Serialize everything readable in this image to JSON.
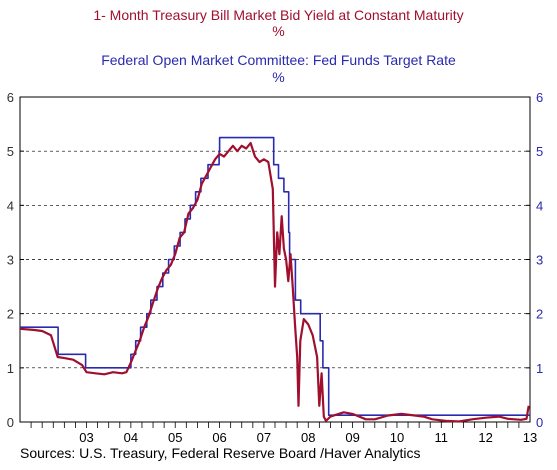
{
  "chart_data": {
    "type": "line",
    "titles": [
      {
        "text": "1- Month Treasury Bill Market Bid Yield at Constant Maturity",
        "color": "#a0102e"
      },
      {
        "text": "%",
        "color": "#a0102e"
      },
      {
        "text": "Federal Open Market Committee: Fed Funds Target Rate",
        "color": "#2a2ab0"
      },
      {
        "text": "%",
        "color": "#2a2ab0"
      }
    ],
    "x_range": [
      2002.0,
      2013.5
    ],
    "x_tick_labels": [
      {
        "label": "03",
        "x": 2003.5
      },
      {
        "label": "04",
        "x": 2004.5
      },
      {
        "label": "05",
        "x": 2005.5
      },
      {
        "label": "06",
        "x": 2006.5
      },
      {
        "label": "07",
        "x": 2007.5
      },
      {
        "label": "08",
        "x": 2008.5
      },
      {
        "label": "09",
        "x": 2009.5
      },
      {
        "label": "10",
        "x": 2010.5
      },
      {
        "label": "11",
        "x": 2011.5
      },
      {
        "label": "12",
        "x": 2012.5
      },
      {
        "label": "13",
        "x": 2013.5
      }
    ],
    "ylim": [
      0,
      6
    ],
    "y_ticks": [
      0,
      1,
      2,
      3,
      4,
      5,
      6
    ],
    "grid": "horizontal-dashed",
    "series": [
      {
        "name": "Federal Open Market Committee: Fed Funds Target Rate",
        "color": "#2a2ab0",
        "step": true,
        "points": [
          [
            2002.0,
            1.75
          ],
          [
            2002.86,
            1.25
          ],
          [
            2003.48,
            1.0
          ],
          [
            2004.5,
            1.25
          ],
          [
            2004.61,
            1.5
          ],
          [
            2004.72,
            1.75
          ],
          [
            2004.86,
            2.0
          ],
          [
            2004.95,
            2.25
          ],
          [
            2005.09,
            2.5
          ],
          [
            2005.22,
            2.75
          ],
          [
            2005.35,
            3.0
          ],
          [
            2005.48,
            3.25
          ],
          [
            2005.61,
            3.5
          ],
          [
            2005.72,
            3.75
          ],
          [
            2005.84,
            4.0
          ],
          [
            2005.96,
            4.25
          ],
          [
            2006.08,
            4.5
          ],
          [
            2006.24,
            4.75
          ],
          [
            2006.49,
            5.0
          ],
          [
            2006.5,
            5.25
          ],
          [
            2007.72,
            4.75
          ],
          [
            2007.83,
            4.5
          ],
          [
            2007.95,
            4.25
          ],
          [
            2008.06,
            3.5
          ],
          [
            2008.08,
            3.0
          ],
          [
            2008.21,
            2.25
          ],
          [
            2008.33,
            2.0
          ],
          [
            2008.77,
            1.5
          ],
          [
            2008.83,
            1.0
          ],
          [
            2008.96,
            0.125
          ],
          [
            2013.5,
            0.125
          ]
        ]
      },
      {
        "name": "1- Month Treasury Bill Market Bid Yield at Constant Maturity",
        "color": "#a0102e",
        "step": false,
        "points": [
          [
            2002.0,
            1.72
          ],
          [
            2002.3,
            1.7
          ],
          [
            2002.5,
            1.68
          ],
          [
            2002.7,
            1.6
          ],
          [
            2002.85,
            1.2
          ],
          [
            2003.0,
            1.18
          ],
          [
            2003.2,
            1.15
          ],
          [
            2003.4,
            1.05
          ],
          [
            2003.5,
            0.92
          ],
          [
            2003.7,
            0.9
          ],
          [
            2003.9,
            0.88
          ],
          [
            2004.1,
            0.92
          ],
          [
            2004.3,
            0.9
          ],
          [
            2004.4,
            0.92
          ],
          [
            2004.5,
            1.1
          ],
          [
            2004.6,
            1.3
          ],
          [
            2004.7,
            1.5
          ],
          [
            2004.8,
            1.75
          ],
          [
            2004.9,
            1.95
          ],
          [
            2005.0,
            2.2
          ],
          [
            2005.1,
            2.45
          ],
          [
            2005.2,
            2.65
          ],
          [
            2005.3,
            2.8
          ],
          [
            2005.4,
            2.9
          ],
          [
            2005.5,
            3.1
          ],
          [
            2005.6,
            3.4
          ],
          [
            2005.7,
            3.5
          ],
          [
            2005.8,
            3.85
          ],
          [
            2005.9,
            3.95
          ],
          [
            2006.0,
            4.1
          ],
          [
            2006.1,
            4.4
          ],
          [
            2006.2,
            4.55
          ],
          [
            2006.3,
            4.7
          ],
          [
            2006.4,
            4.85
          ],
          [
            2006.5,
            4.95
          ],
          [
            2006.6,
            4.9
          ],
          [
            2006.7,
            5.0
          ],
          [
            2006.8,
            5.1
          ],
          [
            2006.9,
            5.0
          ],
          [
            2007.0,
            5.1
          ],
          [
            2007.1,
            5.05
          ],
          [
            2007.2,
            5.15
          ],
          [
            2007.3,
            4.9
          ],
          [
            2007.4,
            4.8
          ],
          [
            2007.5,
            4.85
          ],
          [
            2007.6,
            4.8
          ],
          [
            2007.7,
            4.3
          ],
          [
            2007.75,
            2.5
          ],
          [
            2007.8,
            3.5
          ],
          [
            2007.85,
            3.1
          ],
          [
            2007.9,
            3.8
          ],
          [
            2007.95,
            3.2
          ],
          [
            2008.0,
            3.0
          ],
          [
            2008.05,
            2.6
          ],
          [
            2008.1,
            3.1
          ],
          [
            2008.15,
            2.5
          ],
          [
            2008.2,
            1.8
          ],
          [
            2008.25,
            1.2
          ],
          [
            2008.28,
            0.3
          ],
          [
            2008.32,
            1.5
          ],
          [
            2008.4,
            1.9
          ],
          [
            2008.5,
            1.8
          ],
          [
            2008.6,
            1.6
          ],
          [
            2008.7,
            1.2
          ],
          [
            2008.75,
            0.3
          ],
          [
            2008.8,
            0.9
          ],
          [
            2008.85,
            0.1
          ],
          [
            2008.9,
            0.02
          ],
          [
            2009.0,
            0.1
          ],
          [
            2009.3,
            0.18
          ],
          [
            2009.5,
            0.15
          ],
          [
            2009.8,
            0.05
          ],
          [
            2010.0,
            0.05
          ],
          [
            2010.3,
            0.12
          ],
          [
            2010.6,
            0.15
          ],
          [
            2010.9,
            0.12
          ],
          [
            2011.1,
            0.1
          ],
          [
            2011.3,
            0.05
          ],
          [
            2011.6,
            0.02
          ],
          [
            2011.9,
            0.01
          ],
          [
            2012.2,
            0.05
          ],
          [
            2012.5,
            0.08
          ],
          [
            2012.8,
            0.1
          ],
          [
            2013.0,
            0.06
          ],
          [
            2013.3,
            0.04
          ],
          [
            2013.42,
            0.06
          ],
          [
            2013.47,
            0.3
          ]
        ]
      }
    ]
  },
  "source": "Sources:  U.S. Treasury, Federal Reserve Board /Haver Analytics"
}
